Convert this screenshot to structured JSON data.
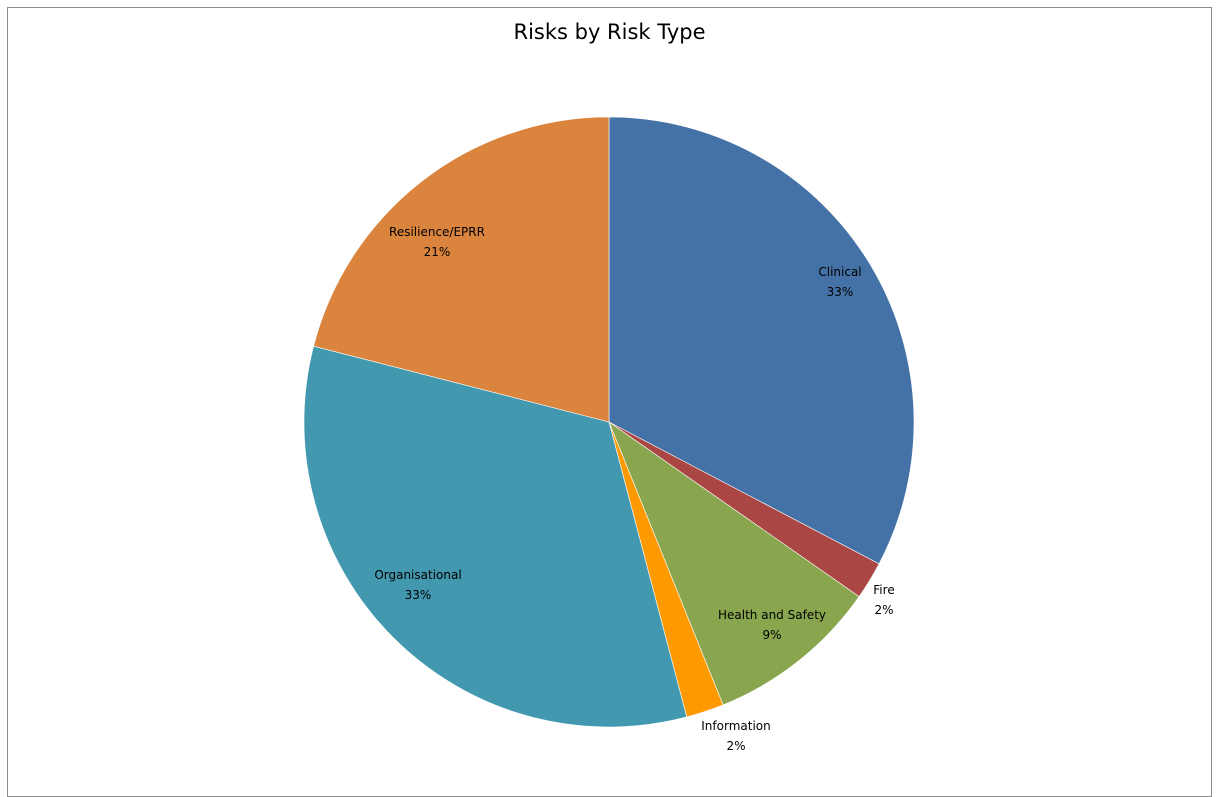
{
  "chart_data": {
    "type": "pie",
    "title": "Risks by Risk Type",
    "start_angle_deg": 0,
    "direction": "clockwise",
    "slices": [
      {
        "label": "Clinical",
        "percent_label": "33%",
        "value": 32.7,
        "color": "#4472A6"
      },
      {
        "label": "Fire",
        "percent_label": "2%",
        "value": 2.0,
        "color": "#AA4643"
      },
      {
        "label": "Health and Safety",
        "percent_label": "9%",
        "value": 9.2,
        "color": "#89A54E"
      },
      {
        "label": "Information",
        "percent_label": "2%",
        "value": 2.0,
        "color": "#FF9900"
      },
      {
        "label": "Organisational",
        "percent_label": "33%",
        "value": 33.1,
        "color": "#4198AF"
      },
      {
        "label": "Resilience/EPRR",
        "percent_label": "21%",
        "value": 21.0,
        "color": "#DB843D"
      }
    ]
  }
}
